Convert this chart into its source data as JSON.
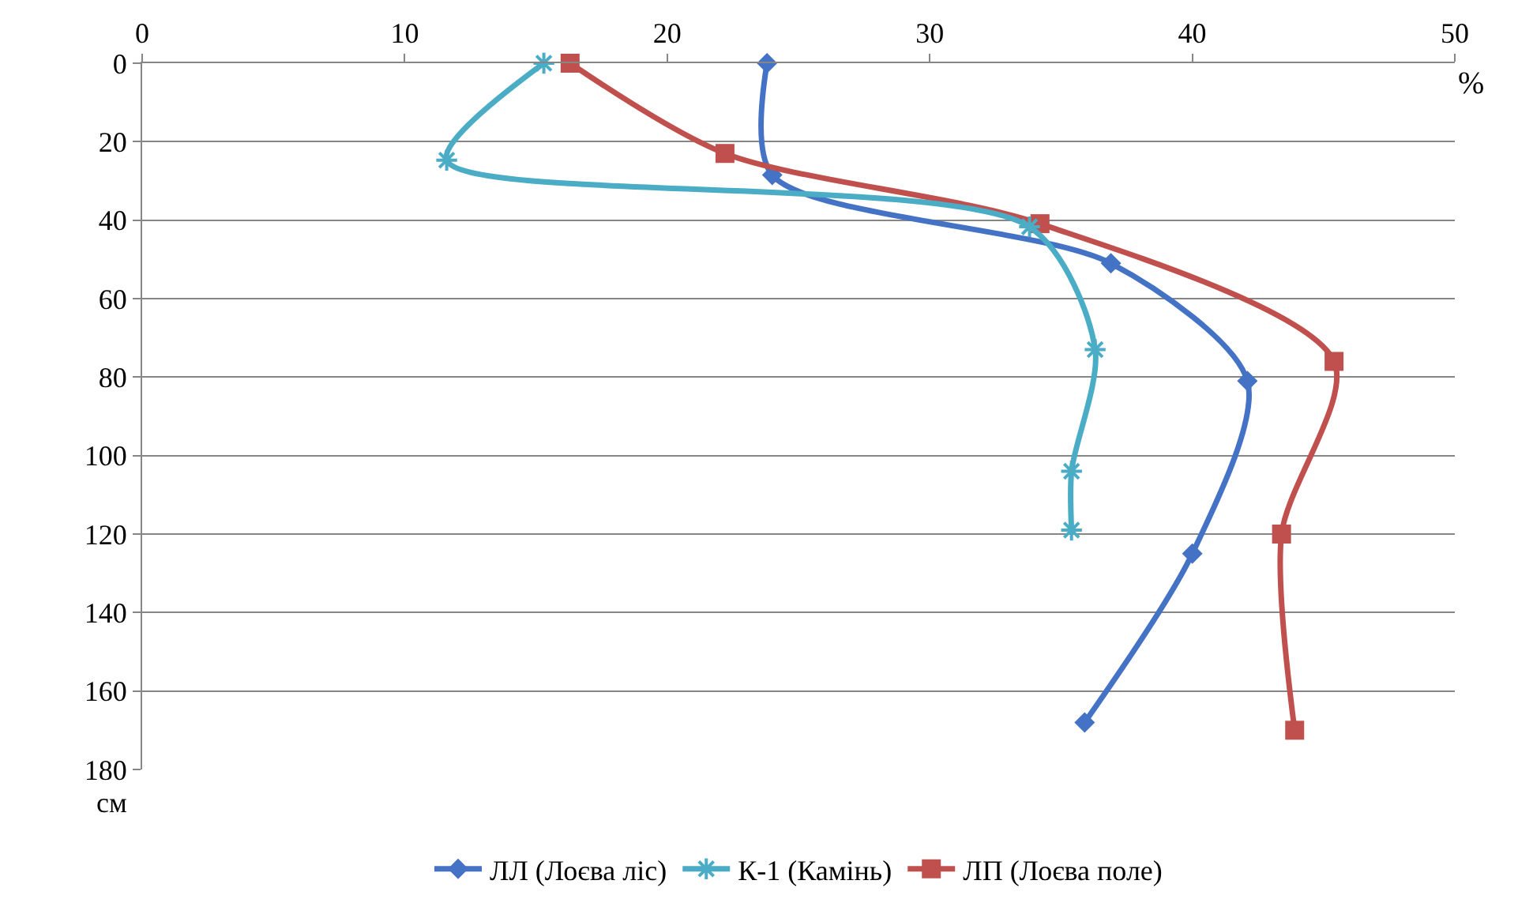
{
  "chart_data": {
    "type": "line",
    "xlabel": "%",
    "ylabel": "см",
    "xlim": [
      0,
      50
    ],
    "xticks": [
      0,
      10,
      20,
      30,
      40,
      50
    ],
    "ylim": [
      180,
      0
    ],
    "yticks": [
      0,
      20,
      40,
      60,
      80,
      100,
      120,
      140,
      160,
      180
    ],
    "grid": "y",
    "legend": "bottom",
    "series": [
      {
        "name": "ЛЛ (Лоєва ліс)",
        "color": "#4472c4",
        "marker": "diamond",
        "x": [
          23.8,
          24.0,
          36.9,
          42.1,
          40.0,
          35.9
        ],
        "values": [
          0,
          28.5,
          51,
          81,
          125,
          168
        ]
      },
      {
        "name": "К-1 (Камінь)",
        "color": "#4bacc6",
        "marker": "cross",
        "x": [
          15.3,
          11.6,
          33.8,
          36.3,
          35.4,
          35.4
        ],
        "values": [
          0,
          24.7,
          41.7,
          73,
          104,
          119
        ]
      },
      {
        "name": "ЛП (Лоєва поле)",
        "color": "#c0504d",
        "marker": "square",
        "x": [
          16.3,
          22.2,
          34.2,
          45.4,
          43.4,
          43.9
        ],
        "values": [
          0,
          23,
          40.9,
          76,
          120,
          170
        ]
      }
    ]
  }
}
